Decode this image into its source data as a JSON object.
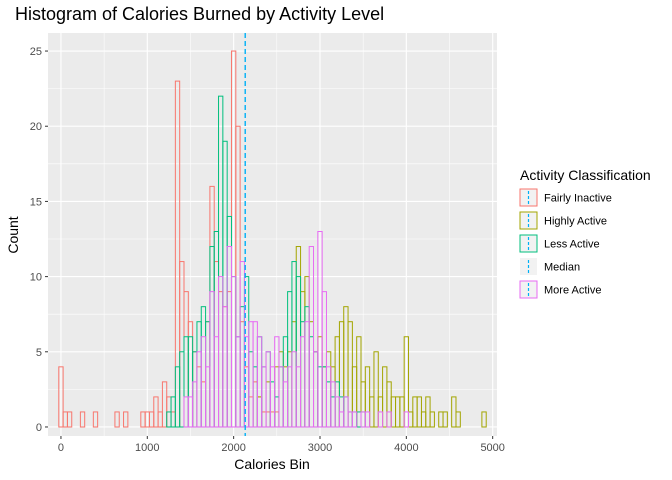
{
  "chart_data": {
    "type": "histogram",
    "title": "Histogram of Calories Burned by Activity Level",
    "xlabel": "Calories Bin",
    "ylabel": "Count",
    "xlim": [
      -150,
      5050
    ],
    "ylim": [
      -0.6,
      26.2
    ],
    "x_ticks": [
      0,
      1000,
      2000,
      3000,
      4000,
      5000
    ],
    "x_tick_labels": [
      "0",
      "1000",
      "2000",
      "3000",
      "4000",
      "5000"
    ],
    "y_ticks": [
      0,
      5,
      10,
      15,
      20,
      25
    ],
    "y_tick_labels": [
      "0",
      "5",
      "10",
      "15",
      "20",
      "25"
    ],
    "bin_width": 50,
    "grid": true,
    "legend_position": "right",
    "legend": {
      "title": "Activity Classification",
      "entries": [
        {
          "name": "Fairly Inactive",
          "color": "#F8766D",
          "kind": "bars"
        },
        {
          "name": "Highly Active",
          "color": "#A3A500",
          "kind": "bars"
        },
        {
          "name": "Less Active",
          "color": "#00BF7D",
          "kind": "bars"
        },
        {
          "name": "Median",
          "color": "#00B0F6",
          "kind": "line"
        },
        {
          "name": "More Active",
          "color": "#E76BF3",
          "kind": "bars"
        }
      ]
    },
    "median": {
      "value": 2134,
      "color": "#00B0F6"
    },
    "series": [
      {
        "name": "Fairly Inactive",
        "color": "#F8766D",
        "bins": [
          [
            0,
            4
          ],
          [
            50,
            1
          ],
          [
            100,
            1
          ],
          [
            250,
            1
          ],
          [
            400,
            1
          ],
          [
            650,
            1
          ],
          [
            750,
            1
          ],
          [
            950,
            1
          ],
          [
            1000,
            1
          ],
          [
            1050,
            1
          ],
          [
            1100,
            2
          ],
          [
            1150,
            1
          ],
          [
            1200,
            3
          ],
          [
            1250,
            2
          ],
          [
            1300,
            1
          ],
          [
            1350,
            23
          ],
          [
            1400,
            11
          ],
          [
            1450,
            9
          ],
          [
            1500,
            7
          ],
          [
            1550,
            5
          ],
          [
            1600,
            4
          ],
          [
            1650,
            3
          ],
          [
            1700,
            7
          ],
          [
            1750,
            16
          ],
          [
            1800,
            11
          ],
          [
            1850,
            9
          ],
          [
            1900,
            8
          ],
          [
            1950,
            9
          ],
          [
            2000,
            25
          ],
          [
            2050,
            20
          ],
          [
            2100,
            7
          ],
          [
            2150,
            4
          ],
          [
            2200,
            2
          ],
          [
            2250,
            3
          ],
          [
            2300,
            2
          ],
          [
            2350,
            1
          ],
          [
            2400,
            1
          ],
          [
            2450,
            1
          ],
          [
            2500,
            1
          ]
        ]
      },
      {
        "name": "Highly Active",
        "color": "#A3A500",
        "bins": [
          [
            2300,
            2
          ],
          [
            2400,
            3
          ],
          [
            2500,
            4
          ],
          [
            2550,
            5
          ],
          [
            2600,
            4
          ],
          [
            2650,
            5
          ],
          [
            2700,
            7
          ],
          [
            2750,
            12
          ],
          [
            2800,
            9
          ],
          [
            2850,
            10
          ],
          [
            2900,
            7
          ],
          [
            2950,
            5
          ],
          [
            3000,
            6
          ],
          [
            3050,
            4
          ],
          [
            3100,
            5
          ],
          [
            3150,
            4
          ],
          [
            3200,
            6
          ],
          [
            3250,
            7
          ],
          [
            3300,
            8
          ],
          [
            3350,
            7
          ],
          [
            3400,
            4
          ],
          [
            3450,
            6
          ],
          [
            3500,
            3
          ],
          [
            3550,
            4
          ],
          [
            3600,
            2
          ],
          [
            3650,
            5
          ],
          [
            3700,
            2
          ],
          [
            3750,
            4
          ],
          [
            3800,
            3
          ],
          [
            3850,
            2
          ],
          [
            3900,
            2
          ],
          [
            3950,
            2
          ],
          [
            4000,
            6
          ],
          [
            4050,
            1
          ],
          [
            4100,
            2
          ],
          [
            4150,
            2
          ],
          [
            4200,
            1
          ],
          [
            4250,
            2
          ],
          [
            4300,
            1
          ],
          [
            4400,
            1
          ],
          [
            4450,
            1
          ],
          [
            4550,
            2
          ],
          [
            4600,
            1
          ],
          [
            4900,
            1
          ]
        ]
      },
      {
        "name": "Less Active",
        "color": "#00BF7D",
        "bins": [
          [
            1250,
            1
          ],
          [
            1300,
            2
          ],
          [
            1350,
            4
          ],
          [
            1400,
            5
          ],
          [
            1450,
            6
          ],
          [
            1500,
            6
          ],
          [
            1550,
            5
          ],
          [
            1600,
            7
          ],
          [
            1650,
            8
          ],
          [
            1700,
            7
          ],
          [
            1750,
            12
          ],
          [
            1800,
            13
          ],
          [
            1850,
            22
          ],
          [
            1900,
            19
          ],
          [
            1950,
            14
          ],
          [
            2000,
            10
          ],
          [
            2050,
            6
          ],
          [
            2100,
            8
          ],
          [
            2150,
            10
          ],
          [
            2200,
            5
          ],
          [
            2250,
            4
          ],
          [
            2300,
            6
          ],
          [
            2350,
            4
          ],
          [
            2400,
            5
          ],
          [
            2450,
            3
          ],
          [
            2500,
            2
          ],
          [
            2550,
            4
          ],
          [
            2600,
            6
          ],
          [
            2650,
            9
          ],
          [
            2700,
            11
          ],
          [
            2750,
            10
          ],
          [
            2800,
            7
          ],
          [
            2850,
            8
          ],
          [
            2900,
            6
          ],
          [
            2950,
            5
          ],
          [
            3000,
            4
          ],
          [
            3050,
            4
          ],
          [
            3100,
            3
          ],
          [
            3150,
            2
          ],
          [
            3200,
            3
          ],
          [
            3250,
            2
          ],
          [
            3300,
            2
          ],
          [
            3350,
            1
          ],
          [
            3400,
            1
          ],
          [
            3450,
            1
          ],
          [
            3500,
            1
          ]
        ]
      },
      {
        "name": "More Active",
        "color": "#E76BF3",
        "bins": [
          [
            1450,
            2
          ],
          [
            1500,
            2
          ],
          [
            1550,
            3
          ],
          [
            1600,
            5
          ],
          [
            1650,
            6
          ],
          [
            1700,
            4
          ],
          [
            1750,
            9
          ],
          [
            1800,
            6
          ],
          [
            1850,
            10
          ],
          [
            1900,
            8
          ],
          [
            1950,
            12
          ],
          [
            2000,
            10
          ],
          [
            2050,
            6
          ],
          [
            2100,
            11
          ],
          [
            2150,
            6
          ],
          [
            2200,
            7
          ],
          [
            2250,
            7
          ],
          [
            2300,
            6
          ],
          [
            2350,
            4
          ],
          [
            2400,
            5
          ],
          [
            2450,
            4
          ],
          [
            2500,
            6
          ],
          [
            2550,
            4
          ],
          [
            2600,
            3
          ],
          [
            2650,
            4
          ],
          [
            2700,
            5
          ],
          [
            2750,
            4
          ],
          [
            2800,
            6
          ],
          [
            2850,
            7
          ],
          [
            2900,
            12
          ],
          [
            2950,
            5
          ],
          [
            3000,
            13
          ],
          [
            3050,
            9
          ],
          [
            3100,
            4
          ],
          [
            3150,
            3
          ],
          [
            3200,
            2
          ],
          [
            3250,
            1
          ],
          [
            3300,
            2
          ],
          [
            3350,
            1
          ],
          [
            3400,
            1
          ],
          [
            3500,
            1
          ],
          [
            3550,
            1
          ],
          [
            3700,
            1
          ],
          [
            3800,
            1
          ],
          [
            4000,
            1
          ]
        ]
      }
    ]
  }
}
